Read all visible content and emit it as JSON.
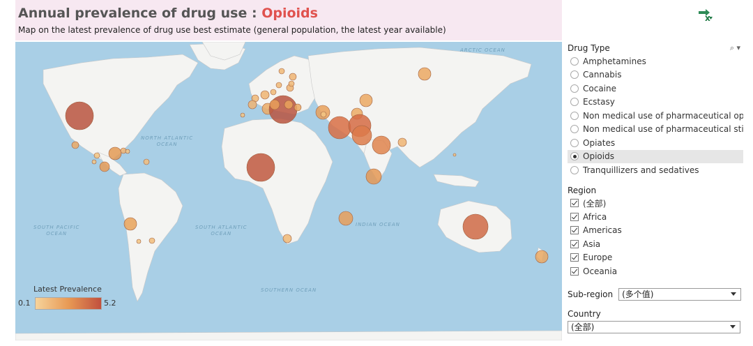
{
  "header": {
    "title_prefix": "Annual prevalence of drug use : ",
    "title_drug": "Opioids",
    "subtitle": "Map on the latest prevalence of drug use best estimate (general population, the latest year available)"
  },
  "map": {
    "ocean_labels": {
      "arctic": "ARCTIC OCEAN",
      "north_atlantic": "NORTH ATLANTIC\nOCEAN",
      "south_pacific": "SOUTH PACIFIC\nOCEAN",
      "south_atlantic": "SOUTH ATLANTIC\nOCEAN",
      "indian": "INDIAN OCEAN",
      "southern": "SOUTHERN OCEAN"
    },
    "bubble_color_scale": [
      "#f6d39b",
      "#e89a55",
      "#c1503e"
    ]
  },
  "legend": {
    "title": "Latest Prevalence",
    "min": "0.1",
    "max": "5.2"
  },
  "icons": {
    "export": "excel-export-icon"
  },
  "filters": {
    "drug_type": {
      "title": "Drug Type",
      "tools": "⌕ ▾",
      "options": [
        "Amphetamines",
        "Cannabis",
        "Cocaine",
        "Ecstasy",
        "Non medical use of pharmaceutical op...",
        "Non medical use of pharmaceutical sti...",
        "Opiates",
        "Opioids",
        "Tranquillizers and sedatives"
      ],
      "selected": "Opioids"
    },
    "region": {
      "title": "Region",
      "options": [
        "(全部)",
        "Africa",
        "Americas",
        "Asia",
        "Europe",
        "Oceania"
      ]
    },
    "sub_region": {
      "label": "Sub-region",
      "value": "(多个值)"
    },
    "country": {
      "label": "Country",
      "value": "(全部)"
    }
  }
}
